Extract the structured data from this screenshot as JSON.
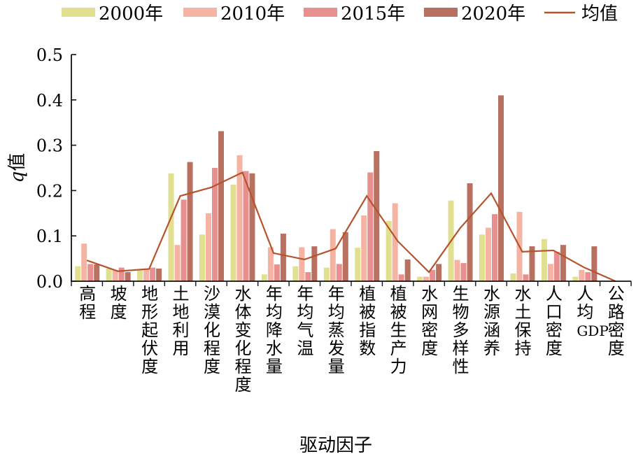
{
  "chart_data": {
    "type": "bar",
    "ylabel": "q值",
    "ylabel_italic_part": "q",
    "ylabel_rest": "值",
    "xlabel": "驱动因子",
    "ylim": [
      0,
      0.5
    ],
    "yticks": [
      "0.0",
      "0.1",
      "0.2",
      "0.3",
      "0.4",
      "0.5"
    ],
    "ytick_values": [
      0,
      0.1,
      0.2,
      0.3,
      0.4,
      0.5
    ],
    "legend_placement": "top",
    "grid": false,
    "categories": [
      "高程",
      "坡度",
      "地形起伏度",
      "土地利用",
      "沙漠化程度",
      "水体变化程度",
      "年均降水量",
      "年均气温",
      "年均蒸发量",
      "植被指数",
      "植被生产力",
      "水网密度",
      "生物多样性",
      "水源涵养",
      "水土保持",
      "人口密度",
      "人均GDP",
      "公路密度"
    ],
    "series": [
      {
        "name": "2000年",
        "type": "bar",
        "color": "#e0e090",
        "values": [
          0.033,
          0.028,
          0.025,
          0.238,
          0.103,
          0.213,
          0.015,
          0.033,
          0.03,
          0.074,
          0.133,
          0.01,
          0.178,
          0.103,
          0.017,
          0.093,
          0.01,
          0.0
        ]
      },
      {
        "name": "2010年",
        "type": "bar",
        "color": "#f5b3a3",
        "values": [
          0.083,
          0.025,
          0.028,
          0.08,
          0.15,
          0.278,
          0.075,
          0.075,
          0.115,
          0.145,
          0.172,
          0.01,
          0.047,
          0.118,
          0.153,
          0.038,
          0.025,
          0.0
        ]
      },
      {
        "name": "2015年",
        "type": "bar",
        "color": "#e89090",
        "values": [
          0.038,
          0.03,
          0.03,
          0.18,
          0.25,
          0.243,
          0.037,
          0.02,
          0.038,
          0.24,
          0.015,
          0.025,
          0.04,
          0.148,
          0.015,
          0.065,
          0.02,
          0.0
        ]
      },
      {
        "name": "2020年",
        "type": "bar",
        "color": "#b87060",
        "values": [
          0.037,
          0.02,
          0.028,
          0.263,
          0.331,
          0.238,
          0.105,
          0.077,
          0.108,
          0.287,
          0.048,
          0.038,
          0.216,
          0.41,
          0.077,
          0.08,
          0.077,
          0.0
        ]
      },
      {
        "name": "均值",
        "type": "line",
        "color": "#b5532d",
        "values": [
          0.046,
          0.022,
          0.027,
          0.188,
          0.207,
          0.24,
          0.062,
          0.048,
          0.072,
          0.188,
          0.088,
          0.02,
          0.117,
          0.194,
          0.065,
          0.068,
          0.03,
          0.0
        ]
      }
    ]
  }
}
